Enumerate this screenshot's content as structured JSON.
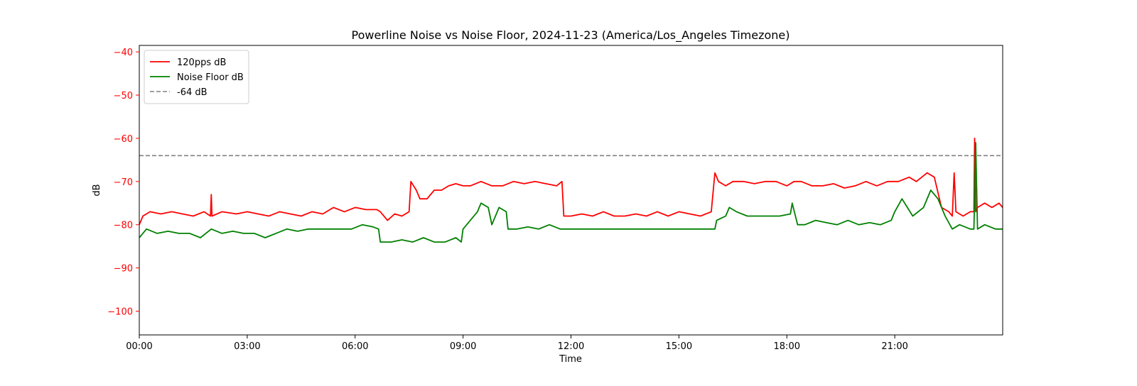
{
  "chart_data": {
    "type": "line",
    "title": "Powerline Noise vs Noise Floor, 2024-11-23 (America/Los_Angeles Timezone)",
    "xlabel": "Time",
    "ylabel": "dB",
    "xlim": [
      0,
      24
    ],
    "ylim": [
      -105.5,
      -38.5
    ],
    "x_ticks": [
      {
        "value": 0,
        "label": "00:00"
      },
      {
        "value": 3,
        "label": "03:00"
      },
      {
        "value": 6,
        "label": "06:00"
      },
      {
        "value": 9,
        "label": "09:00"
      },
      {
        "value": 12,
        "label": "12:00"
      },
      {
        "value": 15,
        "label": "15:00"
      },
      {
        "value": 18,
        "label": "18:00"
      },
      {
        "value": 21,
        "label": "21:00"
      }
    ],
    "y_ticks": [
      {
        "value": -40,
        "label": "−40"
      },
      {
        "value": -50,
        "label": "−50"
      },
      {
        "value": -60,
        "label": "−60"
      },
      {
        "value": -70,
        "label": "−70"
      },
      {
        "value": -80,
        "label": "−80"
      },
      {
        "value": -90,
        "label": "−90"
      },
      {
        "value": -100,
        "label": "−100"
      }
    ],
    "grid": false,
    "legend_position": "top-left",
    "colors": {
      "ylabel": "#ff0000",
      "frame": "#000000"
    },
    "series": [
      {
        "name": "120pps dB",
        "color": "#ff0000",
        "style": "solid",
        "x": [
          0,
          0.1,
          0.3,
          0.6,
          0.9,
          1.2,
          1.5,
          1.8,
          1.98,
          2.0,
          2.02,
          2.3,
          2.7,
          3.0,
          3.3,
          3.6,
          3.9,
          4.2,
          4.5,
          4.8,
          5.1,
          5.4,
          5.7,
          6.0,
          6.3,
          6.6,
          6.7,
          6.9,
          7.1,
          7.3,
          7.5,
          7.55,
          7.7,
          7.8,
          8.0,
          8.2,
          8.4,
          8.6,
          8.8,
          9.0,
          9.2,
          9.5,
          9.8,
          10.1,
          10.4,
          10.7,
          11.0,
          11.3,
          11.6,
          11.75,
          11.8,
          12.0,
          12.3,
          12.6,
          12.9,
          13.2,
          13.5,
          13.8,
          14.1,
          14.4,
          14.7,
          15.0,
          15.3,
          15.6,
          15.9,
          16.0,
          16.1,
          16.3,
          16.5,
          16.8,
          17.1,
          17.4,
          17.7,
          18.0,
          18.2,
          18.4,
          18.7,
          19.0,
          19.3,
          19.6,
          19.9,
          20.2,
          20.5,
          20.8,
          21.1,
          21.4,
          21.6,
          21.9,
          22.1,
          22.3,
          22.5,
          22.6,
          22.65,
          22.7,
          22.9,
          23.1,
          23.2,
          23.22,
          23.25,
          23.3,
          23.5,
          23.7,
          23.9,
          24.0
        ],
        "values": [
          -80,
          -78,
          -77,
          -77.5,
          -77,
          -77.5,
          -78,
          -77,
          -78,
          -73,
          -78,
          -77,
          -77.5,
          -77,
          -77.5,
          -78,
          -77,
          -77.5,
          -78,
          -77,
          -77.5,
          -76,
          -77,
          -76,
          -76.5,
          -76.5,
          -77,
          -79,
          -77.5,
          -78,
          -77,
          -70,
          -72,
          -74,
          -74,
          -72,
          -72,
          -71,
          -70.5,
          -71,
          -71,
          -70,
          -71,
          -71,
          -70,
          -70.5,
          -70,
          -70.5,
          -71,
          -70,
          -78,
          -78,
          -77.5,
          -78,
          -77,
          -78,
          -78,
          -77.5,
          -78,
          -77,
          -78,
          -77,
          -77.5,
          -78,
          -77,
          -68,
          -70,
          -71,
          -70,
          -70,
          -70.5,
          -70,
          -70,
          -71,
          -70,
          -70,
          -71,
          -71,
          -70.5,
          -71.5,
          -71,
          -70,
          -71,
          -70,
          -70,
          -69,
          -70,
          -68,
          -69,
          -76,
          -77,
          -78,
          -68,
          -77,
          -78,
          -77,
          -77,
          -60,
          -77,
          -76,
          -75,
          -76,
          -75,
          -76
        ]
      },
      {
        "name": "Noise Floor dB",
        "color": "#008000",
        "style": "solid",
        "x": [
          0,
          0.2,
          0.5,
          0.8,
          1.1,
          1.4,
          1.7,
          2.0,
          2.3,
          2.6,
          2.9,
          3.2,
          3.5,
          3.8,
          4.1,
          4.4,
          4.7,
          5.0,
          5.3,
          5.6,
          5.9,
          6.2,
          6.5,
          6.65,
          6.7,
          7.0,
          7.3,
          7.6,
          7.9,
          8.2,
          8.5,
          8.8,
          8.95,
          9.0,
          9.2,
          9.4,
          9.5,
          9.7,
          9.8,
          10.0,
          10.2,
          10.25,
          10.5,
          10.8,
          11.1,
          11.4,
          11.7,
          11.85,
          11.9,
          12.2,
          12.5,
          12.8,
          13.1,
          13.4,
          13.7,
          14.0,
          14.3,
          14.6,
          14.9,
          15.2,
          15.5,
          15.8,
          16.0,
          16.05,
          16.3,
          16.4,
          16.6,
          16.9,
          17.2,
          17.5,
          17.8,
          18.1,
          18.15,
          18.3,
          18.5,
          18.8,
          19.1,
          19.4,
          19.7,
          20.0,
          20.3,
          20.6,
          20.9,
          21.0,
          21.2,
          21.5,
          21.8,
          22.0,
          22.2,
          22.4,
          22.6,
          22.8,
          23.1,
          23.2,
          23.25,
          23.3,
          23.5,
          23.8,
          24.0
        ],
        "values": [
          -83,
          -81,
          -82,
          -81.5,
          -82,
          -82,
          -83,
          -81,
          -82,
          -81.5,
          -82,
          -82,
          -83,
          -82,
          -81,
          -81.5,
          -81,
          -81,
          -81,
          -81,
          -81,
          -80,
          -80.5,
          -81,
          -84,
          -84,
          -83.5,
          -84,
          -83,
          -84,
          -84,
          -83,
          -84,
          -81,
          -79,
          -77,
          -75,
          -76,
          -80,
          -76,
          -77,
          -81,
          -81,
          -80.5,
          -81,
          -80,
          -81,
          -81,
          -81,
          -81,
          -81,
          -81,
          -81,
          -81,
          -81,
          -81,
          -81,
          -81,
          -81,
          -81,
          -81,
          -81,
          -81,
          -79,
          -78,
          -76,
          -77,
          -78,
          -78,
          -78,
          -78,
          -77.5,
          -75,
          -80,
          -80,
          -79,
          -79.5,
          -80,
          -79,
          -80,
          -79.5,
          -80,
          -79,
          -77,
          -74,
          -78,
          -76,
          -72,
          -74,
          -78,
          -81,
          -80,
          -81,
          -81,
          -61,
          -81,
          -80,
          -81,
          -81
        ]
      },
      {
        "name": "-64 dB",
        "color": "#808080",
        "style": "dashed",
        "x": [
          0,
          24
        ],
        "values": [
          -64,
          -64
        ]
      }
    ]
  }
}
